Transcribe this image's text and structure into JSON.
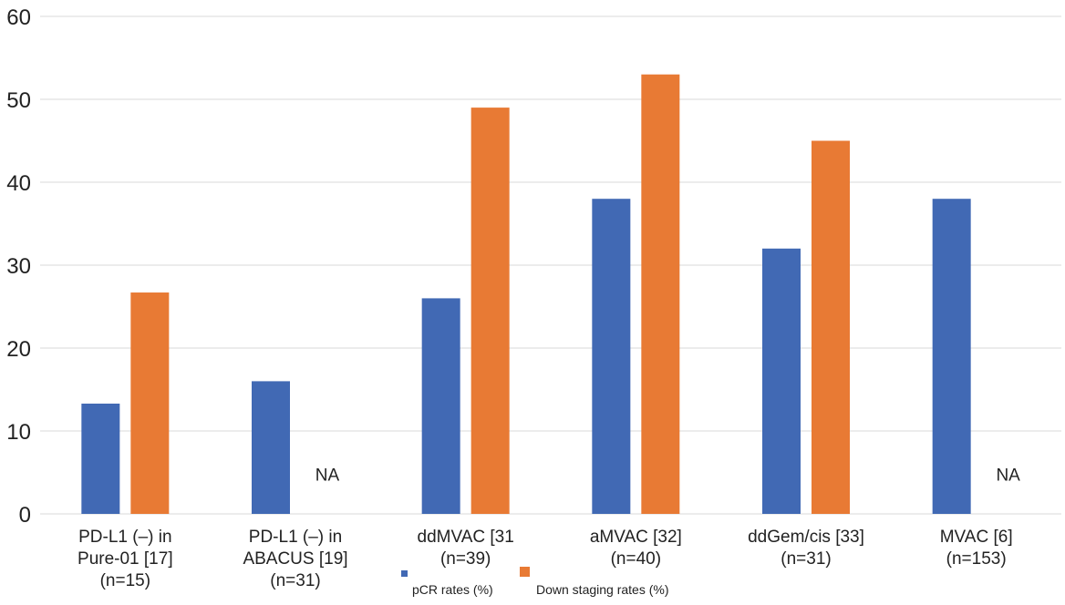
{
  "chart_data": {
    "type": "bar",
    "title": "",
    "xlabel": "",
    "ylabel": "",
    "ylim": [
      0,
      60
    ],
    "yticks": [
      0,
      10,
      20,
      30,
      40,
      50,
      60
    ],
    "grid": true,
    "legend_position": "bottom",
    "categories": [
      [
        "PD-L1 (–) in",
        "Pure-01 [17]",
        "(n=15)"
      ],
      [
        "PD-L1 (–) in",
        "ABACUS [19]",
        "(n=31)"
      ],
      [
        "ddMVAC [31",
        "(n=39)"
      ],
      [
        "aMVAC [32]",
        "(n=40)"
      ],
      [
        "ddGem/cis [33]",
        "(n=31)"
      ],
      [
        "MVAC [6]",
        "(n=153)"
      ]
    ],
    "series": [
      {
        "name": "pCR rates (%)",
        "color": "#4169b4",
        "values": [
          13.3,
          16,
          26,
          38,
          32,
          38
        ]
      },
      {
        "name": "Down staging rates (%)",
        "color": "#e87a34",
        "values": [
          26.7,
          null,
          49,
          53,
          45,
          null
        ]
      }
    ],
    "missing_label": "NA"
  }
}
